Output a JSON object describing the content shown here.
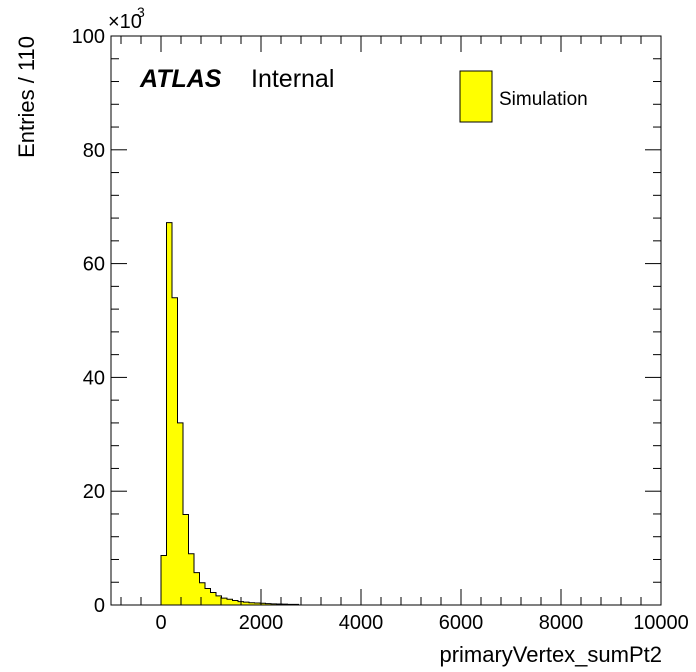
{
  "chart_data": {
    "type": "bar",
    "xlabel": "primaryVertex_sumPt2",
    "ylabel": "Entries / 110",
    "multiplier": {
      "base": "×10",
      "exponent": "3"
    },
    "xlim": [
      -1000,
      10000
    ],
    "ylim": [
      0,
      100
    ],
    "x_ticks": [
      0,
      2000,
      4000,
      6000,
      8000,
      10000
    ],
    "x_tick_labels": [
      "0",
      "2000",
      "4000",
      "6000",
      "8000",
      "10000"
    ],
    "y_ticks": [
      0,
      20,
      40,
      60,
      80,
      100
    ],
    "y_tick_labels": [
      "0",
      "20",
      "40",
      "60",
      "80",
      "100"
    ],
    "bin_width": 110,
    "bin_edges_start": 0,
    "values": [
      8.7,
      67.2,
      54.0,
      32.0,
      15.9,
      9.0,
      5.7,
      3.9,
      2.9,
      2.2,
      1.6,
      1.2,
      1.0,
      0.8,
      0.6,
      0.5,
      0.4,
      0.35,
      0.3,
      0.25,
      0.2,
      0.18,
      0.15,
      0.12,
      0.1
    ],
    "fill_color": "#ffff00",
    "line_color": "#000000",
    "legend": {
      "entries": [
        {
          "label": "Simulation",
          "color": "#ffff00"
        }
      ],
      "position": "top-right"
    },
    "annotation": {
      "bold": "ATLAS",
      "normal": "Internal"
    },
    "grid": false
  }
}
